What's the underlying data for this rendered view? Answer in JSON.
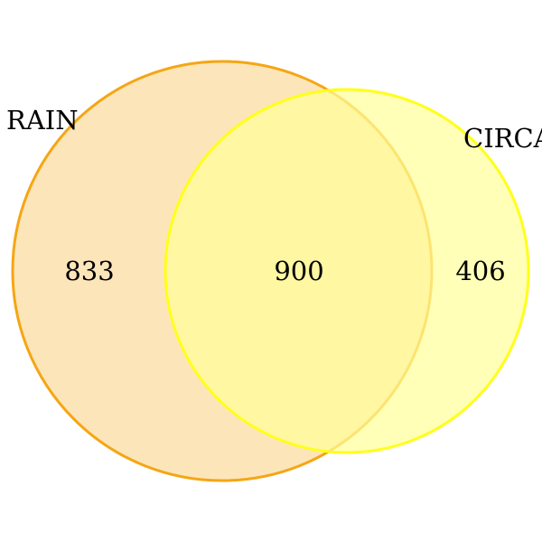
{
  "venn": {
    "sets": [
      {
        "name": "RAIN",
        "only_count": "833",
        "fill": "#fde2b3",
        "stroke": "#f5a614"
      },
      {
        "name": "CIRCA",
        "only_count": "406",
        "fill": "#ffff99",
        "stroke": "#ffff1a"
      }
    ],
    "intersection_count": "900"
  }
}
